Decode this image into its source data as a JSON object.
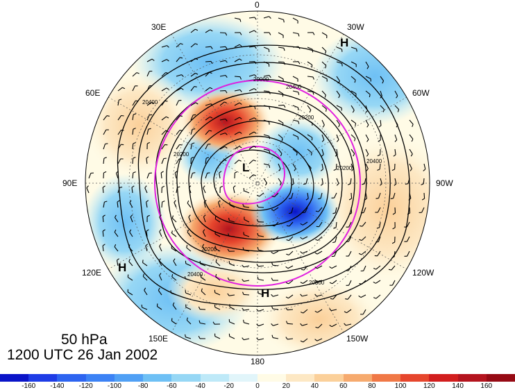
{
  "map": {
    "projection": "north-polar-stereographic",
    "level_label": "50 hPa",
    "time_label": "1200 UTC 26 Jan 2002",
    "longitude_labels": [
      "0",
      "30W",
      "60W",
      "90W",
      "120W",
      "150W",
      "180",
      "150E",
      "120E",
      "90E",
      "60E",
      "30E"
    ],
    "contour_labels": [
      "20200",
      "20400",
      "20000",
      "20200",
      "20400",
      "20200",
      "20400",
      "20600",
      "20400",
      "20200"
    ],
    "pressure_centers": [
      {
        "id": "h-30w",
        "text": "H"
      },
      {
        "id": "h-120e",
        "text": "H"
      },
      {
        "id": "h-170w",
        "text": "H"
      },
      {
        "id": "l-pole",
        "text": "L"
      }
    ],
    "colorbar": {
      "tick_labels": [
        "-160",
        "-140",
        "-120",
        "-100",
        "-80",
        "-60",
        "-40",
        "-20",
        "0",
        "20",
        "40",
        "60",
        "80",
        "100",
        "120",
        "140",
        "160"
      ],
      "colors": [
        "#0a14c8",
        "#1e3ce6",
        "#2d64f0",
        "#3c82f5",
        "#50a0f5",
        "#6ec0f5",
        "#96d7f5",
        "#bee9f8",
        "#e1f5fa",
        "#fffbe6",
        "#fde8c4",
        "#fbd09a",
        "#f6aa6e",
        "#f07846",
        "#e6462d",
        "#d21e1e",
        "#b4141e",
        "#960a14"
      ]
    },
    "colors": {
      "contour": "#000000",
      "magenta_ring": "#e020e0",
      "grid": "#555555"
    }
  }
}
